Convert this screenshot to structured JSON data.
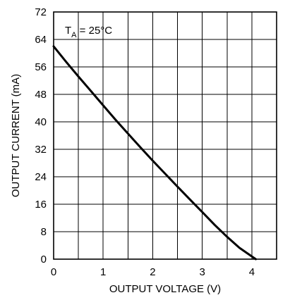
{
  "chart_data": {
    "type": "line",
    "title": "",
    "xlabel": "OUTPUT VOLTAGE (V)",
    "ylabel": "OUTPUT CURRENT (mA)",
    "xlim": [
      0,
      4.5
    ],
    "ylim": [
      0,
      72
    ],
    "x_ticks": [
      0,
      1,
      2,
      3,
      4
    ],
    "y_ticks": [
      0,
      8,
      16,
      24,
      32,
      40,
      48,
      56,
      64,
      72
    ],
    "grid": true,
    "legend": "none",
    "annotation": {
      "base": "T",
      "subscript": "A",
      "rest": " = 25°C"
    },
    "series": [
      {
        "x": [
          0,
          0.25,
          0.5,
          0.75,
          1.0,
          1.25,
          1.5,
          1.75,
          2.0,
          2.25,
          2.5,
          2.75,
          3.0,
          3.25,
          3.5,
          3.75,
          4.0,
          4.08
        ],
        "y": [
          62,
          57.5,
          53.2,
          49.0,
          44.8,
          40.6,
          36.6,
          32.6,
          28.7,
          24.9,
          21.1,
          17.4,
          13.7,
          10.0,
          6.5,
          3.3,
          0.8,
          0
        ]
      }
    ]
  }
}
